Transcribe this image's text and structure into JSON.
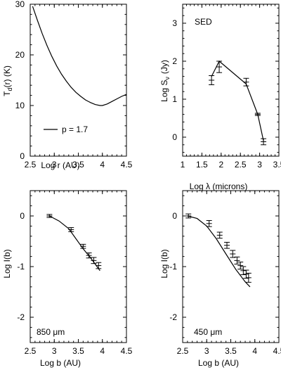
{
  "chart_data": [
    {
      "type": "line",
      "xlabel": "Log r (AU)",
      "ylabel": "T_d(r) (K)",
      "ylabel_main": "T",
      "ylabel_sub": "d",
      "ylabel_rest": "(r)  (K)",
      "xlim": [
        2.5,
        4.5
      ],
      "ylim": [
        0,
        30
      ],
      "xticks": [
        2.5,
        3,
        3.5,
        4,
        4.5
      ],
      "yticks": [
        0,
        10,
        20,
        30
      ],
      "x": [
        2.55,
        2.65,
        2.75,
        2.85,
        2.95,
        3.05,
        3.15,
        3.25,
        3.35,
        3.45,
        3.55,
        3.65,
        3.75,
        3.85,
        3.95,
        4.0,
        4.1,
        4.2,
        4.3,
        4.4,
        4.5
      ],
      "y": [
        29.6,
        26.8,
        24.2,
        21.8,
        19.7,
        17.8,
        16.2,
        14.8,
        13.6,
        12.6,
        11.8,
        11.1,
        10.6,
        10.2,
        10.0,
        10.0,
        10.3,
        10.8,
        11.3,
        11.8,
        12.2
      ],
      "legend_label": "p = 1.7"
    },
    {
      "type": "line",
      "xlabel": "Log λ (microns)",
      "ylabel": "Log S_ν (Jy)",
      "ylabel_main": "Log S",
      "ylabel_sub": "ν",
      "ylabel_rest": "(Jy)",
      "xlim": [
        1,
        3.5
      ],
      "ylim": [
        -0.5,
        3.5
      ],
      "xticks": [
        1,
        1.5,
        2,
        2.5,
        3,
        3.5
      ],
      "yticks": [
        0,
        1,
        2,
        3
      ],
      "annotation": "SED",
      "model": {
        "x": [
          1.75,
          1.95,
          2.65,
          2.95,
          3.1
        ],
        "y": [
          1.6,
          2.0,
          1.4,
          0.6,
          -0.1
        ]
      },
      "points": {
        "x": [
          1.75,
          1.95,
          2.65,
          2.95,
          3.1
        ],
        "y": [
          1.5,
          1.85,
          1.45,
          0.6,
          -0.12
        ],
        "err": [
          0.12,
          0.15,
          0.1,
          0.03,
          0.08
        ]
      }
    },
    {
      "type": "line",
      "xlabel": "Log b (AU)",
      "ylabel": "Log I(b)",
      "xlim": [
        2.5,
        4.5
      ],
      "ylim": [
        -2.5,
        0.5
      ],
      "xticks": [
        2.5,
        3,
        3.5,
        4,
        4.5
      ],
      "yticks": [
        0,
        -1,
        -2
      ],
      "annotation": "850 μm",
      "model": {
        "x": [
          2.9,
          3.1,
          3.3,
          3.45,
          3.6,
          3.75,
          3.85,
          3.95
        ],
        "y": [
          0.0,
          -0.1,
          -0.25,
          -0.45,
          -0.65,
          -0.82,
          -0.95,
          -1.08
        ]
      },
      "points": {
        "x": [
          2.9,
          3.35,
          3.6,
          3.72,
          3.82,
          3.92
        ],
        "y": [
          0.0,
          -0.27,
          -0.6,
          -0.78,
          -0.88,
          -0.98
        ],
        "err": [
          0.03,
          0.04,
          0.04,
          0.05,
          0.06,
          0.06
        ]
      }
    },
    {
      "type": "line",
      "xlabel": "Log b (AU)",
      "ylabel": "Log I(b)",
      "xlim": [
        2.5,
        4.5
      ],
      "ylim": [
        -2.5,
        0.5
      ],
      "xticks": [
        2.5,
        3,
        3.5,
        4,
        4.5
      ],
      "yticks": [
        0,
        -1,
        -2
      ],
      "annotation": "450 μm",
      "model": {
        "x": [
          2.6,
          2.8,
          3.0,
          3.2,
          3.4,
          3.6,
          3.8,
          3.9
        ],
        "y": [
          0.0,
          -0.05,
          -0.2,
          -0.45,
          -0.75,
          -1.05,
          -1.3,
          -1.4
        ]
      },
      "points": {
        "x": [
          2.62,
          3.05,
          3.27,
          3.42,
          3.54,
          3.63,
          3.7,
          3.76,
          3.82,
          3.87
        ],
        "y": [
          0.0,
          -0.15,
          -0.38,
          -0.58,
          -0.75,
          -0.88,
          -0.98,
          -1.08,
          -1.15,
          -1.22
        ],
        "err": [
          0.04,
          0.06,
          0.06,
          0.06,
          0.07,
          0.07,
          0.07,
          0.08,
          0.08,
          0.09
        ]
      }
    }
  ]
}
